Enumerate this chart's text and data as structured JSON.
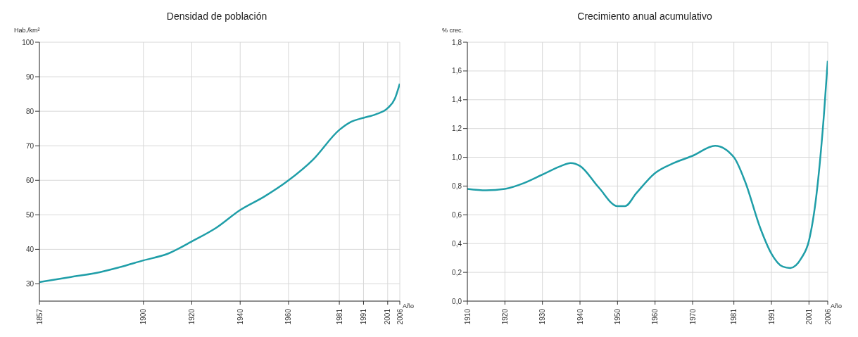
{
  "chart_data": [
    {
      "type": "line",
      "title": "Densidad de población",
      "xlabel": "Año",
      "ylabel": "Hab./km²",
      "xlim": [
        1857,
        2006
      ],
      "xticks": [
        1857,
        1900,
        1920,
        1940,
        1960,
        1981,
        1991,
        2001,
        2006
      ],
      "ylim": [
        25,
        100
      ],
      "yticks": [
        30,
        40,
        50,
        60,
        70,
        80,
        90,
        100
      ],
      "grid": true,
      "marker": "none",
      "line_style": "solid",
      "series": [
        {
          "color": "#1f9ea8",
          "x": [
            1857,
            1870,
            1880,
            1890,
            1900,
            1910,
            1920,
            1930,
            1940,
            1950,
            1960,
            1970,
            1981,
            1986,
            1991,
            1996,
            2001,
            2004,
            2006
          ],
          "values": [
            30.5,
            32.0,
            33.1,
            34.8,
            36.8,
            38.7,
            42.3,
            46.2,
            51.4,
            55.3,
            60.0,
            65.9,
            74.6,
            77.0,
            78.1,
            79.1,
            80.9,
            83.7,
            88.0
          ]
        }
      ]
    },
    {
      "type": "line",
      "title": "Crecimiento anual acumulativo",
      "xlabel": "Año",
      "ylabel": "% crec.",
      "xlim": [
        1910,
        2006
      ],
      "xticks": [
        1910,
        1920,
        1930,
        1940,
        1950,
        1960,
        1970,
        1981,
        1991,
        2001,
        2006
      ],
      "ylim": [
        0,
        1.8
      ],
      "yticks": [
        {
          "value": 0,
          "label": "0,0"
        },
        {
          "value": 0.2,
          "label": "0,2"
        },
        {
          "value": 0.4,
          "label": "0,4"
        },
        {
          "value": 0.6,
          "label": "0,6"
        },
        {
          "value": 0.8,
          "label": "0,8"
        },
        {
          "value": 1,
          "label": "1,0"
        },
        {
          "value": 1.2,
          "label": "1,2"
        },
        {
          "value": 1.4,
          "label": "1,4"
        },
        {
          "value": 1.6,
          "label": "1,6"
        },
        {
          "value": 1.8,
          "label": "1,8"
        }
      ],
      "grid": true,
      "marker": "none",
      "line_style": "solid",
      "series": [
        {
          "color": "#1f9ea8",
          "x": [
            1910,
            1915,
            1920,
            1925,
            1930,
            1935,
            1937.5,
            1940,
            1945,
            1950,
            1952,
            1955,
            1960,
            1965,
            1970,
            1976,
            1981,
            1984,
            1988,
            1991,
            1994,
            1996,
            1999,
            2001,
            2003,
            2005,
            2006
          ],
          "values": [
            0.78,
            0.77,
            0.78,
            0.82,
            0.88,
            0.94,
            0.96,
            0.94,
            0.79,
            0.66,
            0.66,
            0.75,
            0.89,
            0.96,
            1.01,
            1.08,
            1.0,
            0.83,
            0.51,
            0.33,
            0.24,
            0.23,
            0.3,
            0.42,
            0.74,
            1.3,
            1.67
          ]
        }
      ]
    }
  ]
}
